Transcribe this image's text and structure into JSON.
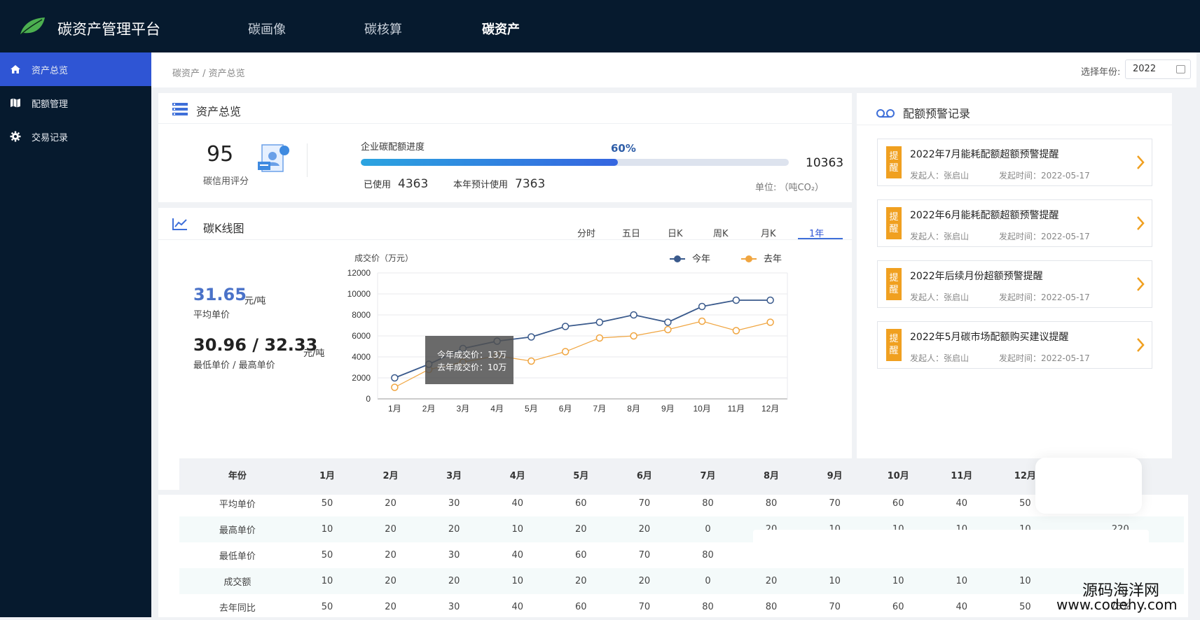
{
  "app": {
    "title": "碳资产管理平台"
  },
  "topnav": [
    {
      "label": "碳画像",
      "active": false
    },
    {
      "label": "碳核算",
      "active": false
    },
    {
      "label": "碳资产",
      "active": true
    }
  ],
  "sidebar": {
    "items": [
      {
        "label": "资产总览",
        "icon": "home-icon",
        "active": true
      },
      {
        "label": "配额管理",
        "icon": "map-icon",
        "active": false
      },
      {
        "label": "交易记录",
        "icon": "gear-icon",
        "active": false
      }
    ]
  },
  "breadcrumb": "碳资产 / 资产总览",
  "year_picker": {
    "label": "选择年份:",
    "value": "2022"
  },
  "overview": {
    "title": "资产总览",
    "score": "95",
    "score_label": "碳信用评分",
    "progress_label": "企业碳配额进度",
    "progress_percent": 60,
    "progress_text": "60%",
    "total": "10363",
    "used_label": "已使用",
    "used_value": "4363",
    "forecast_label": "本年预计使用",
    "forecast_value": "7363",
    "unit": "单位: （吨CO₂）"
  },
  "kline": {
    "title": "碳K线图",
    "tabs": [
      "分时",
      "五日",
      "日K",
      "周K",
      "月K",
      "1年"
    ],
    "active_tab": "1年",
    "avg_price": "31.65",
    "avg_unit": "元/吨",
    "avg_label": "平均单价",
    "minmax": "30.96 / 32.33",
    "minmax_unit": "元/吨",
    "minmax_label": "最低单价 / 最高单价",
    "tooltip_line1": "今年成交价：13万",
    "tooltip_line2": "去年成交价：10万"
  },
  "chart_data": {
    "type": "line",
    "ylabel": "成交价（万元）",
    "ylim": [
      0,
      12000
    ],
    "yticks": [
      "12000",
      "10000",
      "8000",
      "6000",
      "4000",
      "2000",
      "0"
    ],
    "categories": [
      "1月",
      "2月",
      "3月",
      "4月",
      "5月",
      "6月",
      "7月",
      "8月",
      "9月",
      "10月",
      "11月",
      "12月"
    ],
    "series": [
      {
        "name": "今年",
        "color": "#3a5a8c",
        "values": [
          2000,
          3300,
          4800,
          5500,
          5900,
          6900,
          7300,
          8000,
          7300,
          8800,
          9400,
          9400
        ]
      },
      {
        "name": "去年",
        "color": "#f0a540",
        "values": [
          1100,
          2800,
          3500,
          4100,
          3600,
          4500,
          5800,
          6000,
          6600,
          7400,
          6500,
          7300
        ]
      }
    ],
    "grid": true,
    "legend": "top-right"
  },
  "alerts": {
    "title": "配额预警记录",
    "items": [
      {
        "badge": "提醒",
        "title": "2022年7月能耗配额超额预警提醒",
        "initiator": "发起人：张启山",
        "time": "发起时间：2022-05-17"
      },
      {
        "badge": "提醒",
        "title": "2022年6月能耗配额超额预警提醒",
        "initiator": "发起人：张启山",
        "time": "发起时间：2022-05-17"
      },
      {
        "badge": "提醒",
        "title": "2022年后续月份超额预警提醒",
        "initiator": "发起人：张启山",
        "time": "发起时间：2022-05-17"
      },
      {
        "badge": "提醒",
        "title": "2022年5月碳市场配额购买建议提醒",
        "initiator": "发起人：张启山",
        "time": "发起时间：2022-05-17"
      }
    ]
  },
  "table": {
    "headers": [
      "年份",
      "1月",
      "2月",
      "3月",
      "4月",
      "5月",
      "6月",
      "7月",
      "8月",
      "9月",
      "10月",
      "11月",
      "12月",
      ""
    ],
    "rows": [
      [
        "平均单价",
        "50",
        "20",
        "30",
        "40",
        "60",
        "70",
        "80",
        "80",
        "70",
        "60",
        "40",
        "50",
        ""
      ],
      [
        "最高单价",
        "10",
        "20",
        "20",
        "10",
        "20",
        "20",
        "0",
        "20",
        "10",
        "10",
        "10",
        "10",
        "220"
      ],
      [
        "最低单价",
        "50",
        "20",
        "30",
        "40",
        "60",
        "70",
        "80",
        "",
        "",
        "",
        "",
        "",
        ""
      ],
      [
        "成交额",
        "10",
        "20",
        "20",
        "10",
        "20",
        "20",
        "0",
        "20",
        "10",
        "10",
        "10",
        "10",
        ""
      ],
      [
        "去年同比",
        "50",
        "20",
        "30",
        "40",
        "60",
        "70",
        "80",
        "80",
        "70",
        "60",
        "40",
        "50",
        "75%"
      ]
    ]
  },
  "watermark": {
    "line1": "源码海洋网",
    "line2": "www.codehy.com"
  }
}
